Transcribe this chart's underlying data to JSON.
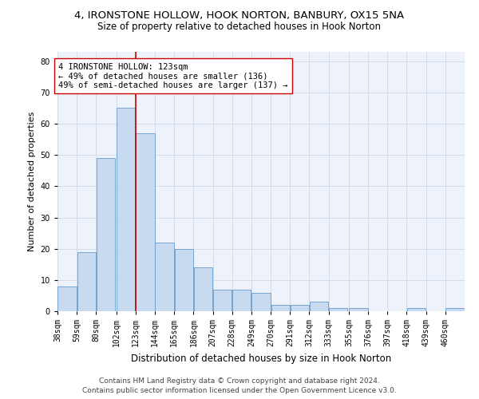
{
  "title_line1": "4, IRONSTONE HOLLOW, HOOK NORTON, BANBURY, OX15 5NA",
  "title_line2": "Size of property relative to detached houses in Hook Norton",
  "xlabel": "Distribution of detached houses by size in Hook Norton",
  "ylabel": "Number of detached properties",
  "footer_line1": "Contains HM Land Registry data © Crown copyright and database right 2024.",
  "footer_line2": "Contains public sector information licensed under the Open Government Licence v3.0.",
  "bin_labels": [
    "38sqm",
    "59sqm",
    "80sqm",
    "102sqm",
    "123sqm",
    "144sqm",
    "165sqm",
    "186sqm",
    "207sqm",
    "228sqm",
    "249sqm",
    "270sqm",
    "291sqm",
    "312sqm",
    "333sqm",
    "355sqm",
    "376sqm",
    "397sqm",
    "418sqm",
    "439sqm",
    "460sqm"
  ],
  "bar_heights": [
    8,
    19,
    49,
    65,
    57,
    22,
    20,
    14,
    7,
    7,
    6,
    2,
    2,
    3,
    1,
    1,
    0,
    0,
    1,
    0,
    1
  ],
  "bar_color": "#c8daf0",
  "bar_edge_color": "#6699cc",
  "vline_x_index": 4,
  "vline_color": "#cc0000",
  "annotation_line1": "4 IRONSTONE HOLLOW: 123sqm",
  "annotation_line2": "← 49% of detached houses are smaller (136)",
  "annotation_line3": "49% of semi-detached houses are larger (137) →",
  "annotation_box_color": "white",
  "annotation_box_edge_color": "#cc0000",
  "ylim": [
    0,
    83
  ],
  "yticks": [
    0,
    10,
    20,
    30,
    40,
    50,
    60,
    70,
    80
  ],
  "grid_color": "#d0d8e8",
  "bg_color": "#eef2fb",
  "title_fontsize": 9.5,
  "subtitle_fontsize": 8.5,
  "axis_label_fontsize": 8,
  "tick_fontsize": 7,
  "annotation_fontsize": 7.5,
  "footer_fontsize": 6.5
}
